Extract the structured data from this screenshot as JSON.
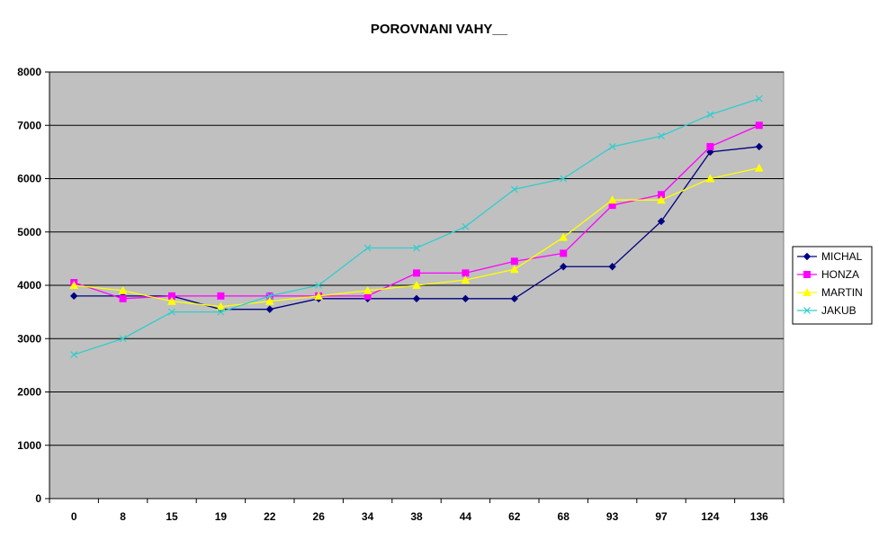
{
  "chart_data": {
    "type": "line",
    "title": "POROVNANI VAHY__",
    "xlabel": "",
    "ylabel": "",
    "categories": [
      "0",
      "8",
      "15",
      "19",
      "22",
      "26",
      "34",
      "38",
      "44",
      "62",
      "68",
      "93",
      "97",
      "124",
      "136"
    ],
    "ylim": [
      0,
      8000
    ],
    "yticks": [
      "0",
      "1000",
      "2000",
      "3000",
      "4000",
      "5000",
      "6000",
      "7000",
      "8000"
    ],
    "grid": true,
    "legend_position": "right",
    "plot_background": "#c0c0c0",
    "series": [
      {
        "name": "MICHAL",
        "color": "#000080",
        "marker": "diamond",
        "values": [
          3800,
          3800,
          3800,
          3550,
          3550,
          3750,
          3750,
          3750,
          3750,
          3750,
          4350,
          4350,
          5200,
          6500,
          6600
        ]
      },
      {
        "name": "HONZA",
        "color": "#ff00ff",
        "marker": "square",
        "values": [
          4050,
          3750,
          3800,
          3800,
          3800,
          3800,
          3800,
          4230,
          4230,
          4450,
          4600,
          5500,
          5700,
          6600,
          7000
        ]
      },
      {
        "name": "MARTIN",
        "color": "#ffff00",
        "marker": "triangle",
        "values": [
          4000,
          3900,
          3700,
          3600,
          3700,
          3800,
          3900,
          4000,
          4100,
          4300,
          4900,
          5600,
          5600,
          6000,
          6200
        ]
      },
      {
        "name": "JAKUB",
        "color": "#33cccc",
        "marker": "x",
        "values": [
          2700,
          3000,
          3500,
          3500,
          3800,
          4000,
          4700,
          4700,
          5100,
          5800,
          6000,
          6600,
          6800,
          7200,
          7500
        ]
      }
    ]
  }
}
